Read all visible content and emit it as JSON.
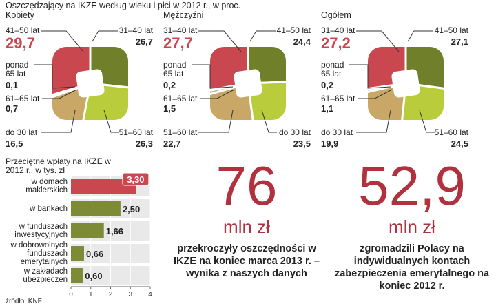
{
  "title": "Oszczędzający na IKZE według wieku i płci w 2012 r., w proc.",
  "chart_data": [
    {
      "type": "pie",
      "title": "Kobiety",
      "categories": [
        "31–40 lat",
        "51–60 lat",
        "do 30 lat",
        "61–65 lat",
        "ponad 65 lat",
        "41–50 lat"
      ],
      "values": [
        26.7,
        26.3,
        16.5,
        0.7,
        0.1,
        29.7
      ],
      "value_labels": [
        "26,7",
        "26,3",
        "16,5",
        "0,7",
        "0,1",
        "29,7"
      ],
      "colors": [
        "#6f7f2a",
        "#b8cc3c",
        "#c9a867",
        "#bdb6a0",
        "#8c8c7c",
        "#c9474f"
      ]
    },
    {
      "type": "pie",
      "title": "Mężczyźni",
      "categories": [
        "41–50 lat",
        "do 30 lat",
        "51–60 lat",
        "61–65 lat",
        "ponad 65 lat",
        "31–40 lat"
      ],
      "values": [
        24.4,
        23.5,
        22.7,
        1.5,
        0.2,
        27.7
      ],
      "value_labels": [
        "24,4",
        "23,5",
        "22,7",
        "1,5",
        "0,2",
        "27,7"
      ],
      "colors": [
        "#6f7f2a",
        "#b8cc3c",
        "#c9a867",
        "#bdb6a0",
        "#8c8c7c",
        "#c9474f"
      ]
    },
    {
      "type": "pie",
      "title": "Ogółem",
      "categories": [
        "41–50 lat",
        "51–60 lat",
        "do 30 lat",
        "61–65 lat",
        "ponad 65 lat",
        "31–40 lat"
      ],
      "values": [
        27.1,
        24.5,
        19.9,
        1.1,
        0.2,
        27.2
      ],
      "value_labels": [
        "27,1",
        "24,5",
        "19,9",
        "1,1",
        "0,2",
        "27,2"
      ],
      "colors": [
        "#6f7f2a",
        "#b8cc3c",
        "#c9a867",
        "#bdb6a0",
        "#8c8c7c",
        "#c9474f"
      ]
    },
    {
      "type": "bar",
      "orientation": "horizontal",
      "title": "Przeciętne wpłaty na IKZE w 2012 r., w tys. zł",
      "categories": [
        "w domach maklerskich",
        "w bankach",
        "w funduszach inwestycyjnych",
        "w dobrowolnych funduszach emerytalnych",
        "w zakładach ubezpieczeń"
      ],
      "values": [
        3.3,
        2.5,
        1.66,
        0.66,
        0.6
      ],
      "value_labels": [
        "3,30",
        "2,50",
        "1,66",
        "0,66",
        "0,60"
      ],
      "colors": [
        "#c9474f",
        "#7d8a36",
        "#7d8a36",
        "#7d8a36",
        "#7d8a36"
      ],
      "xlim": [
        0,
        4
      ],
      "xticks": [
        0,
        1,
        2,
        3,
        4
      ]
    }
  ],
  "stats": [
    {
      "value": "76",
      "unit": "mln zł",
      "text": "przekroczyły oszczędności w IKZE na koniec marca 2013 r. – wynika z naszych danych"
    },
    {
      "value": "52,9",
      "unit": "mln zł",
      "text": "zgromadzili Polacy na indywidualnych kontach zabezpieczenia emerytalnego na koniec 2012 r."
    }
  ],
  "source": "źródło: KNF"
}
